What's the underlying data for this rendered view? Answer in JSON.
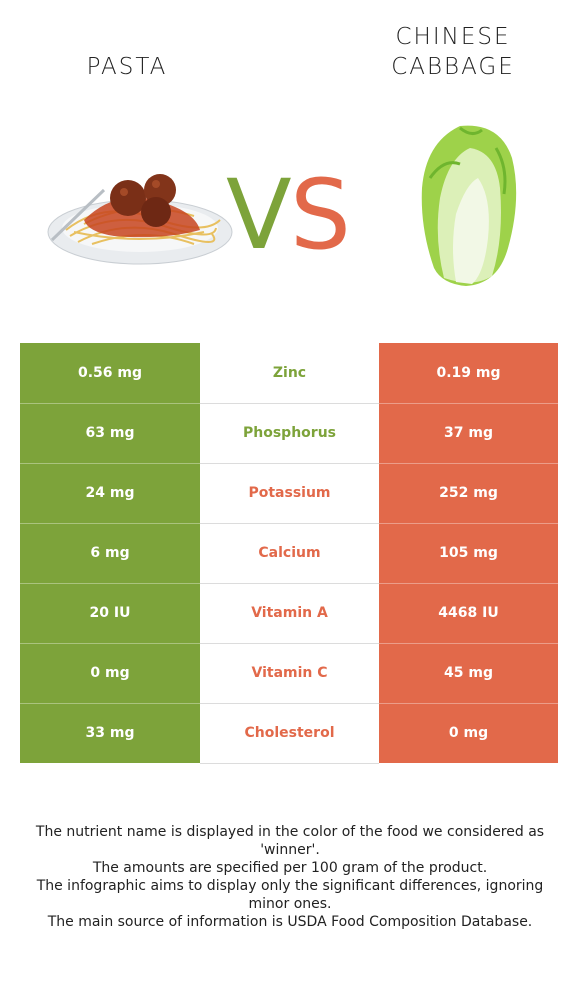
{
  "header": {
    "left_title": "PASTA",
    "right_title_line1": "CHINESE",
    "right_title_line2": "CABBAGE",
    "vs_v": "V",
    "vs_s": "S"
  },
  "colors": {
    "left": "#7da33a",
    "right": "#e2694a"
  },
  "rows": [
    {
      "left": "0.56 mg",
      "nutrient": "Zinc",
      "right": "0.19 mg",
      "winner": "left"
    },
    {
      "left": "63 mg",
      "nutrient": "Phosphorus",
      "right": "37 mg",
      "winner": "left"
    },
    {
      "left": "24 mg",
      "nutrient": "Potassium",
      "right": "252 mg",
      "winner": "right"
    },
    {
      "left": "6 mg",
      "nutrient": "Calcium",
      "right": "105 mg",
      "winner": "right"
    },
    {
      "left": "20 IU",
      "nutrient": "Vitamin A",
      "right": "4468 IU",
      "winner": "right"
    },
    {
      "left": "0 mg",
      "nutrient": "Vitamin C",
      "right": "45 mg",
      "winner": "right"
    },
    {
      "left": "33 mg",
      "nutrient": "Cholesterol",
      "right": "0 mg",
      "winner": "right"
    }
  ],
  "footer": {
    "line1": "The nutrient name is displayed in the color of the food we considered as 'winner'.",
    "line2": "The amounts are specified per 100 gram of the product.",
    "line3": "The infographic aims to display only the significant differences, ignoring minor ones.",
    "line4": "The main source of information is USDA Food Composition Database."
  }
}
